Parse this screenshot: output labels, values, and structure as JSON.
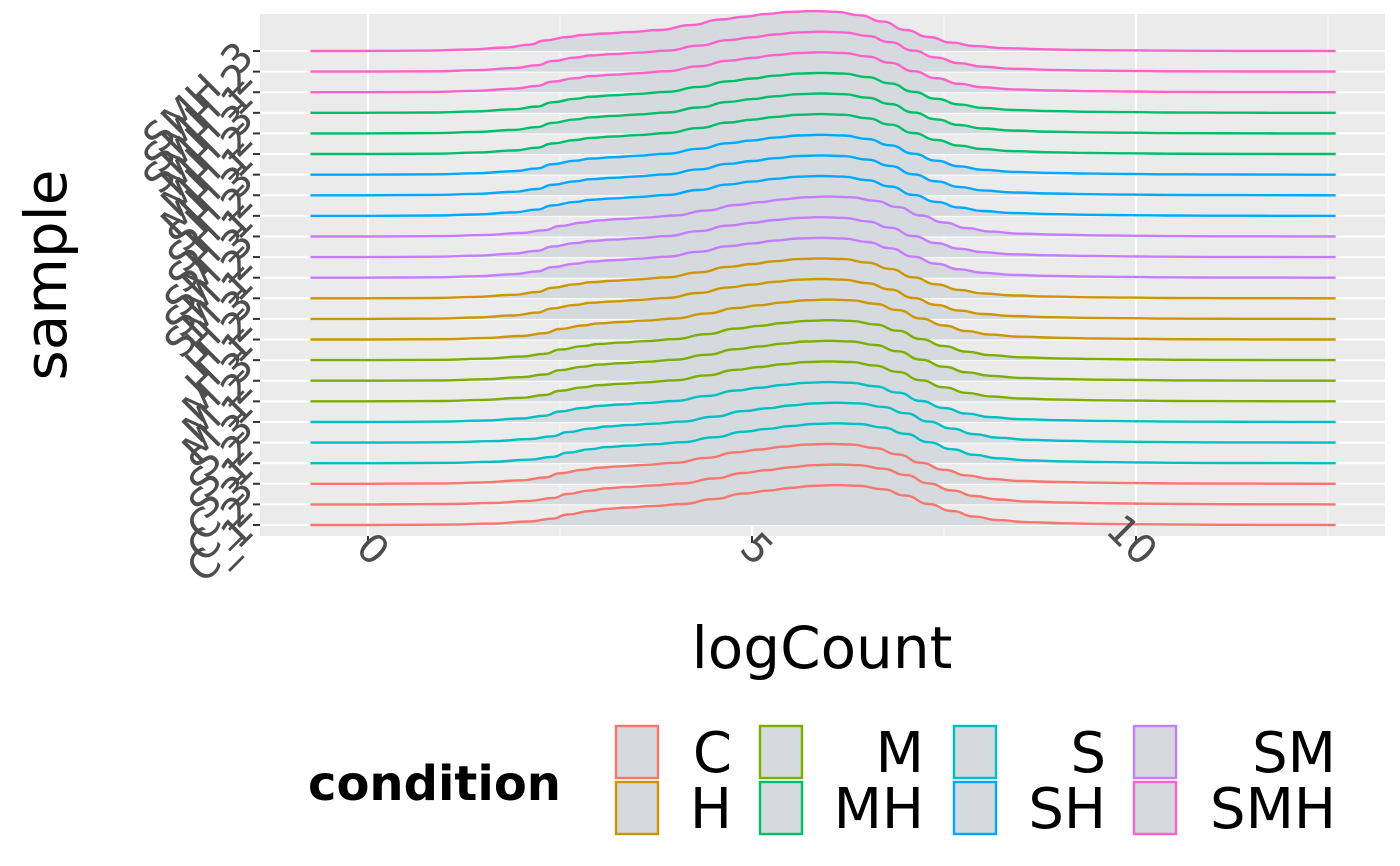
{
  "chart_data": {
    "type": "ridgeline",
    "xlabel": "logCount",
    "ylabel": "sample",
    "xlim": [
      -1.3,
      12.8
    ],
    "x_ticks": [
      0,
      5,
      10
    ],
    "x_tick_labels": [
      "0",
      "5",
      "10"
    ],
    "grid": true,
    "legend": {
      "title": "condition",
      "position": "bottom",
      "entries": [
        {
          "label": "C",
          "color": "#F8766D"
        },
        {
          "label": "H",
          "color": "#CD9600"
        },
        {
          "label": "M",
          "color": "#7CAE00"
        },
        {
          "label": "MH",
          "color": "#00BE67"
        },
        {
          "label": "S",
          "color": "#00BFC4"
        },
        {
          "label": "SH",
          "color": "#00A9FF"
        },
        {
          "label": "SM",
          "color": "#C77CFF"
        },
        {
          "label": "SMH",
          "color": "#FF61CC"
        }
      ]
    },
    "fill_color": "#d5dadf",
    "density_x": [
      -0.75,
      0,
      1,
      1.5,
      2,
      2.3,
      2.5,
      2.8,
      3,
      3.3,
      3.6,
      4,
      4.4,
      4.8,
      5.1,
      5.4,
      5.7,
      6.0,
      6.3,
      6.6,
      6.9,
      7.2,
      7.5,
      7.8,
      8.1,
      8.5,
      9,
      9.5,
      10,
      10.5,
      11,
      11.5,
      12,
      12.6
    ],
    "density_profile": [
      0,
      0,
      0.005,
      0.02,
      0.05,
      0.09,
      0.15,
      0.2,
      0.23,
      0.25,
      0.27,
      0.3,
      0.37,
      0.45,
      0.49,
      0.53,
      0.56,
      0.57,
      0.56,
      0.51,
      0.42,
      0.3,
      0.2,
      0.12,
      0.07,
      0.04,
      0.025,
      0.015,
      0.01,
      0.005,
      0.003,
      0.002,
      0.001,
      0
    ],
    "series": [
      {
        "name": "C_1",
        "condition": "C",
        "color": "#F8766D",
        "peak_x": 6.1,
        "scale": 1.0
      },
      {
        "name": "C_2",
        "condition": "C",
        "color": "#F8766D",
        "peak_x": 6.1,
        "scale": 1.0
      },
      {
        "name": "C_3",
        "condition": "C",
        "color": "#F8766D",
        "peak_x": 6.0,
        "scale": 1.0
      },
      {
        "name": "S_1",
        "condition": "S",
        "color": "#00BFC4",
        "peak_x": 6.1,
        "scale": 1.0
      },
      {
        "name": "S_2",
        "condition": "S",
        "color": "#00BFC4",
        "peak_x": 6.1,
        "scale": 1.0
      },
      {
        "name": "S_3",
        "condition": "S",
        "color": "#00BFC4",
        "peak_x": 6.0,
        "scale": 1.0
      },
      {
        "name": "M_1",
        "condition": "M",
        "color": "#7CAE00",
        "peak_x": 6.0,
        "scale": 1.0
      },
      {
        "name": "M_2",
        "condition": "M",
        "color": "#7CAE00",
        "peak_x": 6.0,
        "scale": 1.0
      },
      {
        "name": "M_3",
        "condition": "M",
        "color": "#7CAE00",
        "peak_x": 6.0,
        "scale": 1.0
      },
      {
        "name": "H_1",
        "condition": "H",
        "color": "#CD9600",
        "peak_x": 6.0,
        "scale": 1.0
      },
      {
        "name": "H_2",
        "condition": "H",
        "color": "#CD9600",
        "peak_x": 5.9,
        "scale": 1.0
      },
      {
        "name": "H_3",
        "condition": "H",
        "color": "#CD9600",
        "peak_x": 5.9,
        "scale": 1.0
      },
      {
        "name": "SM_1",
        "condition": "SM",
        "color": "#C77CFF",
        "peak_x": 5.9,
        "scale": 1.0
      },
      {
        "name": "SM_2",
        "condition": "SM",
        "color": "#C77CFF",
        "peak_x": 5.9,
        "scale": 1.0
      },
      {
        "name": "SM_3",
        "condition": "SM",
        "color": "#C77CFF",
        "peak_x": 6.0,
        "scale": 1.0
      },
      {
        "name": "SH_1",
        "condition": "SH",
        "color": "#00A9FF",
        "peak_x": 5.9,
        "scale": 1.0
      },
      {
        "name": "SH_2",
        "condition": "SH",
        "color": "#00A9FF",
        "peak_x": 5.9,
        "scale": 1.0
      },
      {
        "name": "SH_3",
        "condition": "SH",
        "color": "#00A9FF",
        "peak_x": 5.9,
        "scale": 1.0
      },
      {
        "name": "MH_1",
        "condition": "MH",
        "color": "#00BE67",
        "peak_x": 5.9,
        "scale": 1.0
      },
      {
        "name": "MH_2",
        "condition": "MH",
        "color": "#00BE67",
        "peak_x": 5.9,
        "scale": 1.0
      },
      {
        "name": "MH_3",
        "condition": "MH",
        "color": "#00BE67",
        "peak_x": 5.9,
        "scale": 1.0
      },
      {
        "name": "SMH_1",
        "condition": "SMH",
        "color": "#FF61CC",
        "peak_x": 5.9,
        "scale": 1.0
      },
      {
        "name": "SMH_2",
        "condition": "SMH",
        "color": "#FF61CC",
        "peak_x": 5.9,
        "scale": 1.0
      },
      {
        "name": "SMH_3",
        "condition": "SMH",
        "color": "#FF61CC",
        "peak_x": 5.8,
        "scale": 1.0
      }
    ]
  }
}
